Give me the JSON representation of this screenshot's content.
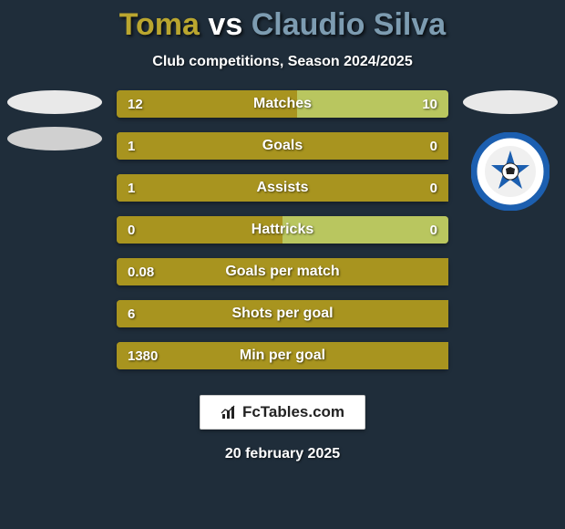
{
  "background_color": "#1f2d3a",
  "title": {
    "player1": "Toma",
    "vs": "vs",
    "player2": "Claudio Silva",
    "color_player1": "#baa62f",
    "color_vs": "#ffffff",
    "color_player2": "#7d9cb1"
  },
  "subtitle": "Club competitions, Season 2024/2025",
  "left_ellipses": {
    "color_top": "#e9e9e9",
    "color_bottom": "#d0d0d0"
  },
  "right_side": {
    "ellipse_color": "#e9e9e9",
    "crest_bg": "#ffffff",
    "crest_ring": "#1c5fb0",
    "crest_inner": "#e8e8e8"
  },
  "bar_style": {
    "track_color": "#8a7a21",
    "left_fill": "#a8941f",
    "right_fill": "#b9c65f",
    "label_color": "#ffffff",
    "height": 30
  },
  "bars": [
    {
      "label": "Matches",
      "left_val": "12",
      "right_val": "10",
      "left_pct": 54.5,
      "right_pct": 45.5
    },
    {
      "label": "Goals",
      "left_val": "1",
      "right_val": "0",
      "left_pct": 100,
      "right_pct": 0
    },
    {
      "label": "Assists",
      "left_val": "1",
      "right_val": "0",
      "left_pct": 100,
      "right_pct": 0
    },
    {
      "label": "Hattricks",
      "left_val": "0",
      "right_val": "0",
      "left_pct": 50,
      "right_pct": 50
    },
    {
      "label": "Goals per match",
      "left_val": "0.08",
      "right_val": "",
      "left_pct": 100,
      "right_pct": 0
    },
    {
      "label": "Shots per goal",
      "left_val": "6",
      "right_val": "",
      "left_pct": 100,
      "right_pct": 0
    },
    {
      "label": "Min per goal",
      "left_val": "1380",
      "right_val": "",
      "left_pct": 100,
      "right_pct": 0
    }
  ],
  "watermark": {
    "text": "FcTables.com",
    "icon_color": "#222222",
    "box_bg": "#ffffff"
  },
  "date": "20 february 2025"
}
